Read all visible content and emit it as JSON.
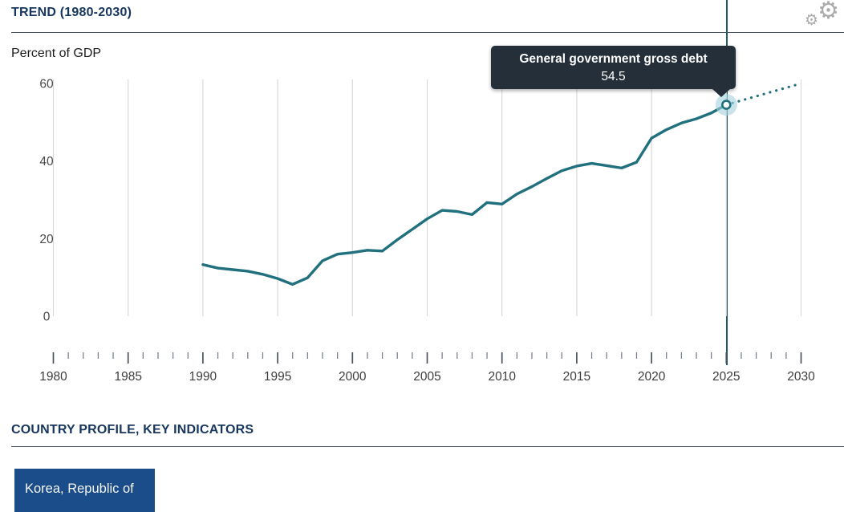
{
  "header": {
    "title": "TREND (1980-2030)"
  },
  "chart": {
    "unit_label": "Percent of GDP"
  },
  "tooltip": {
    "title": "General government gross debt",
    "value": "54.5"
  },
  "chart_data": {
    "type": "line",
    "title": "TREND (1980-2030)",
    "ylabel": "Percent of GDP",
    "xlim": [
      1980,
      2030
    ],
    "ylim": [
      0,
      60
    ],
    "yticks": [
      0,
      20,
      40,
      60
    ],
    "xticks": [
      1980,
      1985,
      1990,
      1995,
      2000,
      2005,
      2010,
      2015,
      2020,
      2025,
      2030
    ],
    "grid": "vertical",
    "series": [
      {
        "name": "General government gross debt",
        "style": "solid",
        "x": [
          1990,
          1991,
          1992,
          1993,
          1994,
          1995,
          1996,
          1997,
          1998,
          1999,
          2000,
          2001,
          2002,
          2003,
          2004,
          2005,
          2006,
          2007,
          2008,
          2009,
          2010,
          2011,
          2012,
          2013,
          2014,
          2015,
          2016,
          2017,
          2018,
          2019,
          2020,
          2021,
          2022,
          2023,
          2024,
          2025
        ],
        "values": [
          13.3,
          12.4,
          12.0,
          11.6,
          10.8,
          9.7,
          8.2,
          9.9,
          14.3,
          16.0,
          16.4,
          17.0,
          16.8,
          19.7,
          22.4,
          25.1,
          27.3,
          27.0,
          26.2,
          29.3,
          28.9,
          31.5,
          33.4,
          35.5,
          37.5,
          38.7,
          39.4,
          38.8,
          38.2,
          39.7,
          45.9,
          48.1,
          49.8,
          50.9,
          52.4,
          54.5
        ]
      },
      {
        "name": "General government gross debt (projection)",
        "style": "dotted",
        "x": [
          2025,
          2026,
          2027,
          2028,
          2029,
          2030
        ],
        "values": [
          54.5,
          55.6,
          56.7,
          57.8,
          58.9,
          60.0
        ]
      }
    ],
    "highlight": {
      "x": 2025,
      "value": 54.5,
      "label": "General government gross debt"
    }
  },
  "footer": {
    "section_title": "COUNTRY PROFILE, KEY INDICATORS",
    "country_button_label": "Korea, Republic of"
  },
  "colors": {
    "line": "#20707e",
    "vertical_marker_line": "#1f5c66",
    "halo": "#a7d4dd",
    "gridline": "#d9d9d9",
    "tick_major": "#49525e",
    "tick_minor": "#7a828e",
    "tooltip_bg": "#242f3a",
    "heading_navy": "#17365f",
    "button_blue": "#1a4d8a"
  }
}
